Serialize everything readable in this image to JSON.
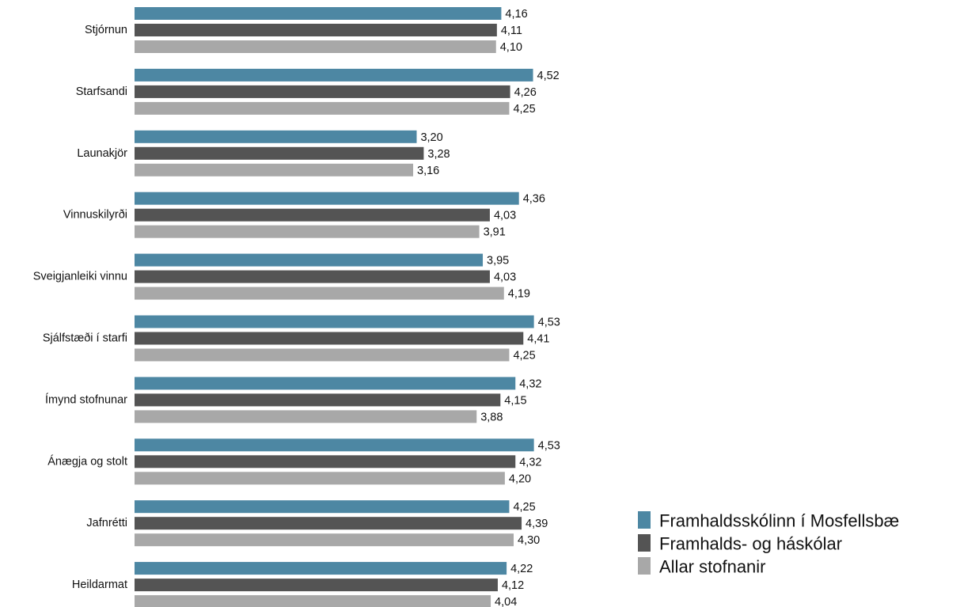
{
  "chart_data": {
    "type": "bar",
    "orientation": "horizontal",
    "categories": [
      "Stjórnun",
      "Starfsandi",
      "Launakjör",
      "Vinnuskilyrði",
      "Sveigjanleiki vinnu",
      "Sjálfstæði í starfi",
      "Ímynd stofnunar",
      "Ánægja og stolt",
      "Jafnrétti",
      "Heildarmat"
    ],
    "series": [
      {
        "name": "Framhaldsskólinn í Mosfellsbæ",
        "color": "#4d87a3",
        "values": [
          4.16,
          4.52,
          3.2,
          4.36,
          3.95,
          4.53,
          4.32,
          4.53,
          4.25,
          4.22
        ],
        "labels": [
          "4,16",
          "4,52",
          "3,20",
          "4,36",
          "3,95",
          "4,53",
          "4,32",
          "4,53",
          "4,25",
          "4,22"
        ]
      },
      {
        "name": "Framhalds- og háskólar",
        "color": "#545454",
        "values": [
          4.11,
          4.26,
          3.28,
          4.03,
          4.03,
          4.41,
          4.15,
          4.32,
          4.39,
          4.12
        ],
        "labels": [
          "4,11",
          "4,26",
          "3,28",
          "4,03",
          "4,03",
          "4,41",
          "4,15",
          "4,32",
          "4,39",
          "4,12"
        ]
      },
      {
        "name": "Allar stofnanir",
        "color": "#a8a8a8",
        "values": [
          4.1,
          4.25,
          3.16,
          3.91,
          4.19,
          4.25,
          3.88,
          4.2,
          4.3,
          4.04
        ],
        "labels": [
          "4,10",
          "4,25",
          "3,16",
          "3,91",
          "4,19",
          "4,25",
          "3,88",
          "4,20",
          "4,30",
          "4,04"
        ]
      }
    ],
    "xlim": [
      0,
      4.6
    ],
    "grid": false,
    "legend": "bottom-right",
    "title": "",
    "xlabel": "",
    "ylabel": ""
  }
}
